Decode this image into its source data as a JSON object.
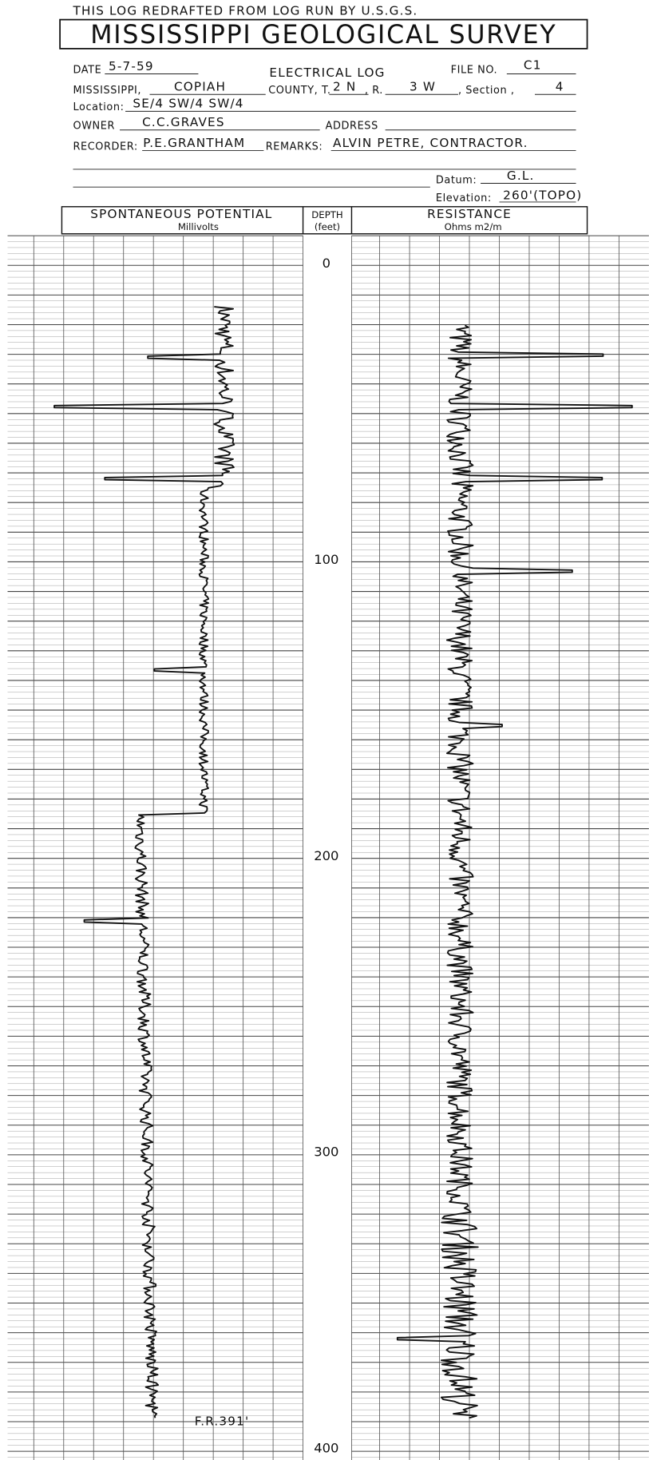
{
  "header": {
    "note": "THIS LOG REDRAFTED FROM LOG RUN BY U.S.G.S.",
    "title": "MISSISSIPPI GEOLOGICAL SURVEY",
    "log_type": "ELECTRICAL LOG"
  },
  "fields": {
    "date_label": "DATE",
    "date": "5-7-59",
    "file_label": "FILE NO.",
    "file": "C1",
    "state": "MISSISSIPPI,",
    "county": "COPIAH",
    "county_label": "COUNTY, T.",
    "township": "2 N",
    "range_label": ", R.",
    "range": "3 W",
    "section_label": ", Section ,",
    "section": "4",
    "location_label": "Location:",
    "location": "SE/4 SW/4 SW/4",
    "owner_label": "OWNER",
    "owner": "C.C.GRAVES",
    "address_label": "ADDRESS",
    "recorder_label": "RECORDER:",
    "recorder": "P.E.GRANTHAM",
    "remarks_label": "REMARKS:",
    "remarks": "ALVIN PETRE, CONTRACTOR.",
    "datum_label": "Datum:",
    "datum": "G.L.",
    "elevation_label": "Elevation:",
    "elevation": "260'(TOPO)"
  },
  "columns": {
    "sp": {
      "title": "SPONTANEOUS POTENTIAL",
      "unit": "Millivolts"
    },
    "depth": {
      "title": "DEPTH",
      "unit": "(feet)",
      "ticks": [
        0,
        100,
        200,
        300,
        400
      ]
    },
    "resistance": {
      "title": "RESISTANCE",
      "unit": "Ohms m2/m"
    }
  },
  "footer_note": "F.R.391'"
}
